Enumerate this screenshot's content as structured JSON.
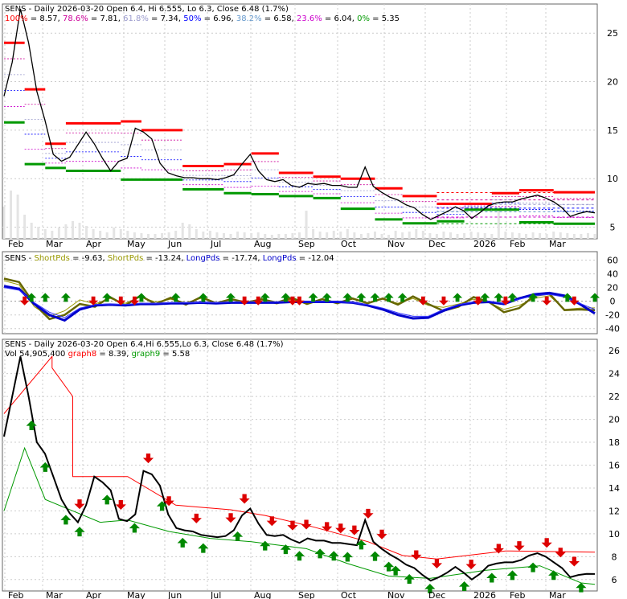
{
  "colors": {
    "frame": "#666666",
    "price": "#000000",
    "resistance": "#ff0000",
    "support": "#009900",
    "short_pds": "#999900",
    "long_pds": "#0000cc",
    "fib_100": "#ff0000",
    "fib_786": "#cc0099",
    "fib_618": "#9999cc",
    "fib_50": "#0000ff",
    "fib_382": "#6699cc",
    "fib_236": "#cc00cc",
    "fib_0": "#009900",
    "graph8": "#ff0000",
    "graph9": "#009900",
    "arrow_up": "#008800",
    "arrow_down": "#dd0000"
  },
  "panel1": {
    "header": [
      {
        "text": "SENS - Daily 2026-03-20 Open 6.4, Hi 6.555, Lo 6.3, Close 6.48 (1.7%)",
        "color": "#000000"
      }
    ],
    "fib_legend": [
      {
        "text": "100%",
        "color": "#ff0000"
      },
      {
        "text": " = 8.57, ",
        "color": "#000000"
      },
      {
        "text": "78.6%",
        "color": "#cc0099"
      },
      {
        "text": " = 7.81, ",
        "color": "#000000"
      },
      {
        "text": "61.8%",
        "color": "#9999cc"
      },
      {
        "text": " = 7.34, ",
        "color": "#000000"
      },
      {
        "text": "50%",
        "color": "#0000ff"
      },
      {
        "text": " = 6.96, ",
        "color": "#000000"
      },
      {
        "text": "38.2%",
        "color": "#6699cc"
      },
      {
        "text": " = 6.58, ",
        "color": "#000000"
      },
      {
        "text": "23.6%",
        "color": "#cc00cc"
      },
      {
        "text": " = 6.04, ",
        "color": "#000000"
      },
      {
        "text": "0%",
        "color": "#009900"
      },
      {
        "text": " = 5.35",
        "color": "#000000"
      }
    ]
  },
  "panel2": {
    "legend": [
      {
        "text": "SENS - ",
        "color": "#000000"
      },
      {
        "text": "ShortPds",
        "color": "#999900"
      },
      {
        "text": " = -9.63, ",
        "color": "#000000"
      },
      {
        "text": "ShortPds",
        "color": "#999900"
      },
      {
        "text": " = -13.24, ",
        "color": "#000000"
      },
      {
        "text": "LongPds",
        "color": "#0000cc"
      },
      {
        "text": " = -17.74, ",
        "color": "#000000"
      },
      {
        "text": "LongPds",
        "color": "#0000cc"
      },
      {
        "text": " = -12.04",
        "color": "#000000"
      }
    ]
  },
  "panel3": {
    "header": "SENS - Daily 2026-03-20 Open 6.4,Hi 6.555,Lo 6.3, Close 6.48 (1.7%)",
    "legend": [
      {
        "text": "Vol 54,905,400 ",
        "color": "#000000"
      },
      {
        "text": "graph8",
        "color": "#ff0000"
      },
      {
        "text": " = 8.39, ",
        "color": "#000000"
      },
      {
        "text": "graph9",
        "color": "#009900"
      },
      {
        "text": " = 5.58",
        "color": "#000000"
      }
    ]
  },
  "chart_data": [
    {
      "type": "line",
      "name": "price",
      "x_labels": [
        "Feb",
        "Mar",
        "Apr",
        "May",
        "Jun",
        "Jul",
        "Aug",
        "Sep",
        "Oct",
        "Nov",
        "Dec",
        "2026",
        "Feb",
        "Mar"
      ],
      "y_ticks": [
        5,
        10,
        15,
        20,
        25
      ],
      "ylim": [
        3.8,
        28
      ],
      "close": [
        18.5,
        22,
        27.5,
        24,
        19,
        16,
        12.5,
        11.8,
        12.2,
        13.5,
        14.8,
        13.6,
        12.1,
        10.8,
        11.8,
        12.1,
        15.2,
        14.8,
        14.1,
        11.6,
        10.6,
        10.3,
        10.1,
        10.1,
        10.0,
        10.0,
        9.9,
        10.1,
        10.4,
        11.5,
        12.5,
        10.8,
        9.9,
        9.7,
        9.9,
        9.3,
        9.1,
        9.5,
        9.4,
        9.5,
        9.3,
        9.3,
        9.1,
        9.1,
        11.2,
        9.2,
        8.6,
        8.1,
        7.8,
        7.3,
        7.0,
        6.3,
        5.8,
        6.2,
        6.6,
        7.1,
        6.7,
        5.9,
        6.5,
        7.2,
        7.5,
        7.6,
        7.6,
        7.9,
        8.1,
        8.3,
        8.0,
        7.6,
        7.0,
        6.1,
        6.4,
        6.6,
        6.48
      ],
      "resistance": [
        [
          0,
          3,
          24
        ],
        [
          3,
          6,
          19.2
        ],
        [
          6,
          9,
          13.6
        ],
        [
          9,
          17,
          15.7
        ],
        [
          17,
          20,
          15.9
        ],
        [
          20,
          26,
          15
        ],
        [
          26,
          32,
          11.3
        ],
        [
          32,
          36,
          11.5
        ],
        [
          36,
          40,
          12.6
        ],
        [
          40,
          45,
          10.6
        ],
        [
          45,
          49,
          10.2
        ],
        [
          49,
          54,
          10.0
        ],
        [
          54,
          58,
          9.0
        ],
        [
          58,
          63,
          8.2
        ],
        [
          63,
          67,
          7.4
        ],
        [
          67,
          71,
          7.4
        ],
        [
          71,
          75,
          8.5
        ],
        [
          75,
          80,
          8.8
        ],
        [
          80,
          86,
          8.6
        ]
      ],
      "support": [
        [
          0,
          3,
          15.8
        ],
        [
          3,
          6,
          11.5
        ],
        [
          6,
          9,
          11.1
        ],
        [
          9,
          17,
          10.8
        ],
        [
          17,
          20,
          9.9
        ],
        [
          20,
          26,
          9.9
        ],
        [
          26,
          32,
          8.9
        ],
        [
          32,
          36,
          8.5
        ],
        [
          36,
          40,
          8.4
        ],
        [
          40,
          45,
          8.2
        ],
        [
          45,
          49,
          8.0
        ],
        [
          49,
          54,
          6.9
        ],
        [
          54,
          58,
          5.8
        ],
        [
          58,
          63,
          5.4
        ],
        [
          63,
          67,
          5.6
        ],
        [
          67,
          71,
          6.8
        ],
        [
          71,
          75,
          6.8
        ],
        [
          75,
          80,
          5.5
        ],
        [
          80,
          86,
          5.35
        ]
      ],
      "fib_levels": {
        "100%": 8.57,
        "78.6%": 7.81,
        "61.8%": 7.34,
        "50%": 6.96,
        "38.2%": 6.58,
        "23.6%": 6.04,
        "0%": 5.35
      }
    },
    {
      "type": "line",
      "name": "oscillator",
      "x_labels": [
        "Feb",
        "Mar",
        "Apr",
        "May",
        "Jun",
        "Jul",
        "Aug",
        "Sep",
        "Oct",
        "Nov",
        "Dec",
        "2026",
        "Feb",
        "Mar"
      ],
      "y_ticks": [
        -40,
        -20,
        0,
        20,
        40,
        60
      ],
      "ylim": [
        -45,
        70
      ],
      "series": [
        {
          "name": "ShortPds",
          "values": [
            30,
            24,
            -8,
            -22,
            -14,
            2,
            -4,
            4,
            -3,
            6,
            -1,
            3,
            -2,
            4,
            -2,
            2,
            -1,
            2,
            -4,
            3,
            -3,
            2,
            -2,
            3,
            -2,
            3,
            -3,
            4,
            -6,
            -9,
            -4,
            3,
            -2,
            -12,
            -6,
            4,
            8,
            -12,
            -10,
            -9.63
          ]
        },
        {
          "name": "ShortPds",
          "values": [
            33,
            28,
            -4,
            -26,
            -20,
            -4,
            -8,
            6,
            -6,
            8,
            -4,
            5,
            -5,
            6,
            -3,
            3,
            -2,
            3,
            -2,
            5,
            -4,
            3,
            -3,
            4,
            -3,
            4,
            -5,
            7,
            -4,
            -14,
            -8,
            6,
            -1,
            -16,
            -10,
            8,
            11,
            -13,
            -12,
            -13.24
          ]
        },
        {
          "name": "LongPds",
          "values": [
            22,
            18,
            -4,
            -20,
            -28,
            -12,
            -6,
            -5,
            -6,
            -4,
            -4,
            -3,
            -3,
            -2,
            -3,
            -2,
            -2,
            -2,
            -2,
            -1,
            -1,
            -1,
            -1,
            -2,
            -6,
            -12,
            -20,
            -25,
            -24,
            -14,
            -6,
            -2,
            -1,
            -4,
            4,
            10,
            12,
            8,
            -4,
            -17.74
          ]
        },
        {
          "name": "LongPds",
          "values": [
            20,
            16,
            -2,
            -16,
            -24,
            -10,
            -5,
            -4,
            -5,
            -3,
            -3,
            -2,
            -2,
            -2,
            -2,
            -1,
            -1,
            -1,
            -1,
            0,
            -1,
            -1,
            -1,
            -2,
            -5,
            -10,
            -17,
            -22,
            -22,
            -12,
            -5,
            -1,
            0,
            -3,
            3,
            8,
            10,
            6,
            -3,
            -12.04
          ]
        }
      ],
      "arrows_up": [
        4,
        6,
        9,
        15,
        20,
        25,
        29,
        33,
        38,
        41,
        45,
        47,
        50,
        52,
        54,
        56,
        58,
        66,
        70,
        72,
        74,
        77,
        82,
        86
      ],
      "arrows_down": [
        3,
        13,
        17,
        19,
        35,
        37,
        42,
        43,
        61,
        64,
        69,
        73,
        79,
        83
      ]
    },
    {
      "type": "line",
      "name": "price_with_volume",
      "x_labels": [
        "Feb",
        "Mar",
        "Apr",
        "May",
        "Jun",
        "Jul",
        "Aug",
        "Sep",
        "Oct",
        "Nov",
        "Dec",
        "2026",
        "Feb",
        "Mar"
      ],
      "y_ticks": [
        6,
        8,
        10,
        12,
        14,
        16,
        18,
        20,
        22,
        24,
        26
      ],
      "ylim": [
        5,
        27
      ],
      "close": [
        18.5,
        22,
        25.5,
        22,
        18,
        17,
        15,
        13,
        11.8,
        11.0,
        12.5,
        15,
        14.5,
        13.8,
        11.3,
        11.1,
        11.7,
        15.5,
        15.2,
        14.2,
        11.7,
        10.5,
        10.3,
        10.2,
        9.9,
        9.8,
        9.7,
        9.8,
        10.3,
        11.6,
        12.2,
        10.9,
        9.9,
        9.8,
        9.9,
        9.5,
        9.2,
        9.6,
        9.4,
        9.4,
        9.2,
        9.2,
        9.1,
        9.0,
        11.2,
        9.3,
        8.7,
        8.2,
        7.8,
        7.3,
        7.0,
        6.4,
        5.9,
        6.2,
        6.6,
        7.1,
        6.6,
        6.0,
        6.5,
        7.2,
        7.4,
        7.5,
        7.5,
        7.7,
        8.1,
        8.3,
        8.0,
        7.5,
        7.0,
        6.2,
        6.4,
        6.5,
        6.48
      ],
      "graph8": [
        [
          0,
          20.5
        ],
        [
          7,
          25.5
        ],
        [
          7,
          24.5
        ],
        [
          10,
          22
        ],
        [
          10,
          15
        ],
        [
          18,
          15
        ],
        [
          25,
          12.5
        ],
        [
          33,
          12.1
        ],
        [
          38,
          11.6
        ],
        [
          45,
          10.6
        ],
        [
          53,
          9.3
        ],
        [
          58,
          8.1
        ],
        [
          63,
          7.8
        ],
        [
          73,
          8.5
        ],
        [
          86,
          8.39
        ]
      ],
      "graph9": [
        [
          0,
          12
        ],
        [
          3,
          17.5
        ],
        [
          6,
          13
        ],
        [
          10,
          12
        ],
        [
          14,
          11
        ],
        [
          18,
          11.2
        ],
        [
          24,
          10.2
        ],
        [
          30,
          9.6
        ],
        [
          36,
          9.3
        ],
        [
          44,
          8.7
        ],
        [
          50,
          7.4
        ],
        [
          56,
          6.3
        ],
        [
          62,
          6.1
        ],
        [
          70,
          6.8
        ],
        [
          78,
          7.2
        ],
        [
          84,
          5.7
        ],
        [
          86,
          5.58
        ]
      ],
      "arrows_up": [
        4,
        6,
        9,
        11,
        15,
        19,
        23,
        26,
        29,
        34,
        38,
        41,
        43,
        46,
        48,
        50,
        52,
        54,
        56,
        57,
        59,
        62,
        67,
        71,
        74,
        77,
        80,
        84
      ],
      "arrows_down": [
        11,
        17,
        21,
        24,
        28,
        33,
        35,
        39,
        42,
        44,
        47,
        49,
        51,
        53,
        55,
        60,
        63,
        68,
        72,
        75,
        79,
        81,
        83
      ]
    }
  ]
}
